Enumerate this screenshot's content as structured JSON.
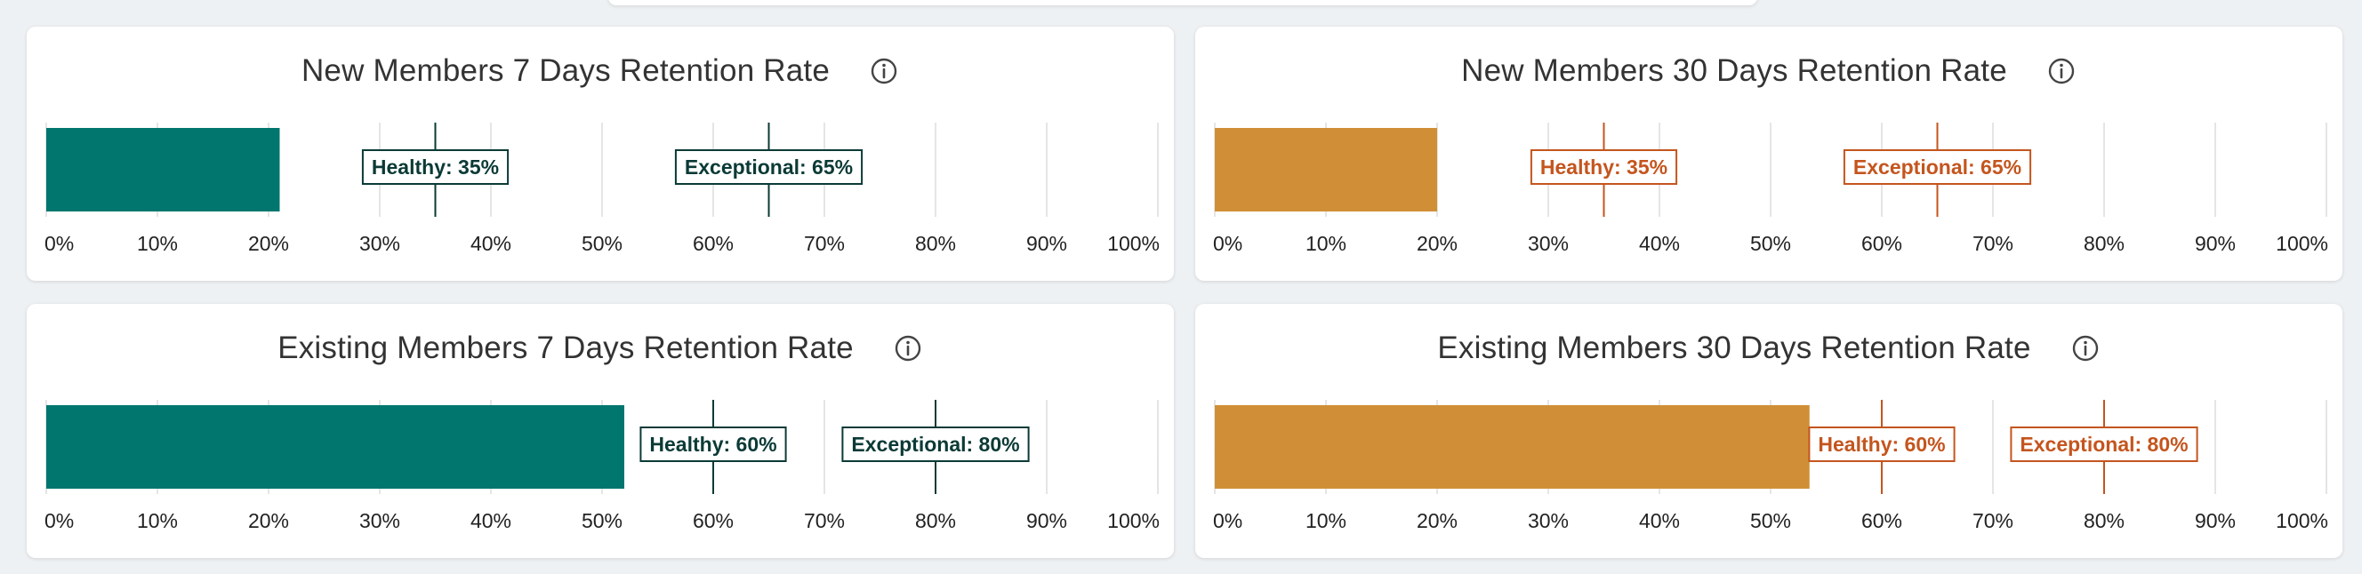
{
  "cards": [
    {
      "title": "New Members 7 Days Retention Rate",
      "info_icon": "info-circle-icon",
      "color": "#00766e",
      "label_color": "#0b3a36"
    },
    {
      "title": "New Members 30 Days Retention Rate",
      "info_icon": "info-circle-icon",
      "color": "#d08f37",
      "label_color": "#c4551e"
    },
    {
      "title": "Existing Members 7 Days Retention Rate",
      "info_icon": "info-circle-icon",
      "color": "#00766e",
      "label_color": "#0b3a36"
    },
    {
      "title": "Existing Members 30 Days Retention Rate",
      "info_icon": "info-circle-icon",
      "color": "#d08f37",
      "label_color": "#c4551e"
    }
  ],
  "chart_data": [
    {
      "type": "bar",
      "title": "New Members 7 Days Retention Rate",
      "orientation": "horizontal",
      "values": [
        21
      ],
      "unit": "%",
      "xlim": [
        0,
        100
      ],
      "ticks": [
        "0%",
        "10%",
        "20%",
        "30%",
        "40%",
        "50%",
        "60%",
        "70%",
        "80%",
        "90%",
        "100%"
      ],
      "grid": true,
      "benchmarks": [
        {
          "label": "Healthy: 35%",
          "value": 35
        },
        {
          "label": "Exceptional: 65%",
          "value": 65
        }
      ],
      "color": "#00766e"
    },
    {
      "type": "bar",
      "title": "New Members 30 Days Retention Rate",
      "orientation": "horizontal",
      "values": [
        20
      ],
      "unit": "%",
      "xlim": [
        0,
        100
      ],
      "ticks": [
        "0%",
        "10%",
        "20%",
        "30%",
        "40%",
        "50%",
        "60%",
        "70%",
        "80%",
        "90%",
        "100%"
      ],
      "grid": true,
      "benchmarks": [
        {
          "label": "Healthy: 35%",
          "value": 35
        },
        {
          "label": "Exceptional: 65%",
          "value": 65
        }
      ],
      "color": "#d08f37"
    },
    {
      "type": "bar",
      "title": "Existing Members 7 Days Retention Rate",
      "orientation": "horizontal",
      "values": [
        52
      ],
      "unit": "%",
      "xlim": [
        0,
        100
      ],
      "ticks": [
        "0%",
        "10%",
        "20%",
        "30%",
        "40%",
        "50%",
        "60%",
        "70%",
        "80%",
        "90%",
        "100%"
      ],
      "grid": true,
      "benchmarks": [
        {
          "label": "Healthy: 60%",
          "value": 60
        },
        {
          "label": "Exceptional: 80%",
          "value": 80
        }
      ],
      "color": "#00766e"
    },
    {
      "type": "bar",
      "title": "Existing Members 30 Days Retention Rate",
      "orientation": "horizontal",
      "values": [
        53.5
      ],
      "unit": "%",
      "xlim": [
        0,
        100
      ],
      "ticks": [
        "0%",
        "10%",
        "20%",
        "30%",
        "40%",
        "50%",
        "60%",
        "70%",
        "80%",
        "90%",
        "100%"
      ],
      "grid": true,
      "benchmarks": [
        {
          "label": "Healthy: 60%",
          "value": 60
        },
        {
          "label": "Exceptional: 80%",
          "value": 80
        }
      ],
      "color": "#d08f37"
    }
  ]
}
